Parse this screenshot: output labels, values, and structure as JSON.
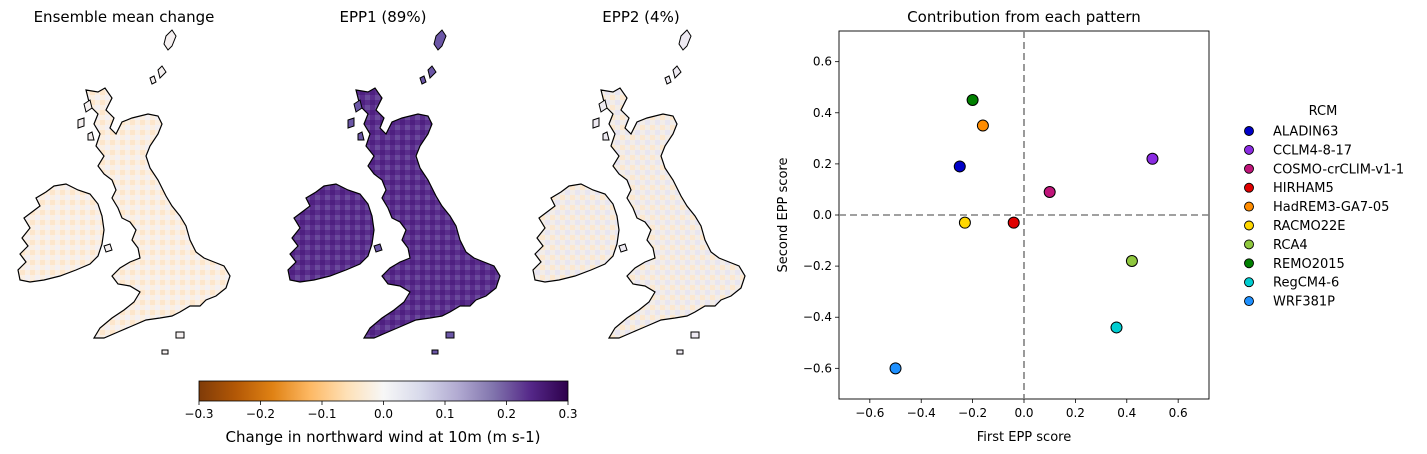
{
  "maps": [
    {
      "title": "Ensemble mean change",
      "theme": "mean"
    },
    {
      "title": "EPP1 (89%)",
      "theme": "epp1"
    },
    {
      "title": "EPP2 (4%)",
      "theme": "epp2"
    }
  ],
  "colorbar": {
    "label": "Change in northward wind at 10m (m s-1)",
    "min": -0.3,
    "max": 0.3,
    "ticks": [
      "-0.3",
      "-0.2",
      "-0.1",
      "0.0",
      "0.1",
      "0.2",
      "0.3"
    ],
    "colormap": [
      "#7f3b08",
      "#b35806",
      "#e08214",
      "#fdb863",
      "#fee0b6",
      "#f7f7f7",
      "#d8daeb",
      "#b2abd2",
      "#8073ac",
      "#542788",
      "#2d004b"
    ]
  },
  "chart_data": {
    "type": "scatter",
    "title": "Contribution from each pattern",
    "xlabel": "First EPP score",
    "ylabel": "Second EPP score",
    "xlim": [
      -0.72,
      0.72
    ],
    "ylim": [
      -0.72,
      0.72
    ],
    "xticks": [
      "-0.6",
      "-0.4",
      "-0.2",
      "0.0",
      "0.2",
      "0.4",
      "0.6"
    ],
    "yticks": [
      "-0.6",
      "-0.4",
      "-0.2",
      "0.0",
      "0.2",
      "0.4",
      "0.6"
    ],
    "reference_lines": {
      "x": 0,
      "y": 0,
      "style": "dashed",
      "color": "#808080"
    },
    "legend": {
      "title": "RCM",
      "placement": "outside-right"
    },
    "series": [
      {
        "name": "ALADIN63",
        "x": -0.25,
        "y": 0.19,
        "color": "#0000c8"
      },
      {
        "name": "CCLM4-8-17",
        "x": 0.5,
        "y": 0.22,
        "color": "#8a2be2"
      },
      {
        "name": "COSMO-crCLIM-v1-1",
        "x": 0.1,
        "y": 0.09,
        "color": "#c0157a"
      },
      {
        "name": "HIRHAM5",
        "x": -0.04,
        "y": -0.03,
        "color": "#e00000"
      },
      {
        "name": "HadREM3-GA7-05",
        "x": -0.16,
        "y": 0.35,
        "color": "#ff8c00"
      },
      {
        "name": "RACMO22E",
        "x": -0.23,
        "y": -0.03,
        "color": "#ffd700"
      },
      {
        "name": "RCA4",
        "x": 0.42,
        "y": -0.18,
        "color": "#8fc73e"
      },
      {
        "name": "REMO2015",
        "x": -0.2,
        "y": 0.45,
        "color": "#008000"
      },
      {
        "name": "RegCM4-6",
        "x": 0.36,
        "y": -0.44,
        "color": "#00cdd1"
      },
      {
        "name": "WRF381P",
        "x": -0.5,
        "y": -0.6,
        "color": "#1e90ff"
      }
    ]
  }
}
